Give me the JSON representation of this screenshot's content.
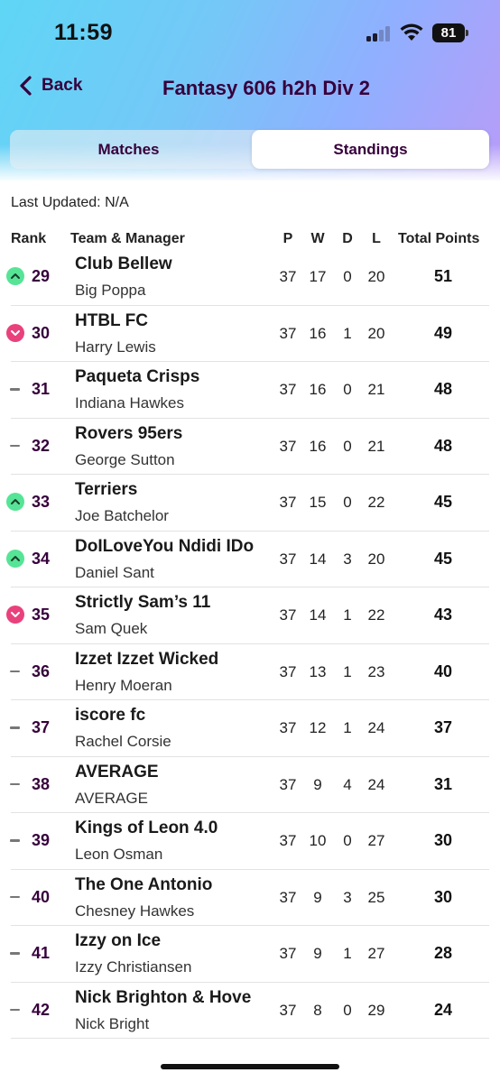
{
  "status_bar": {
    "time": "11:59",
    "battery": "81"
  },
  "nav": {
    "back_label": "Back",
    "title": "Fantasy 606 h2h Div 2"
  },
  "tabs": {
    "matches": "Matches",
    "standings": "Standings"
  },
  "last_updated": "Last Updated: N/A",
  "columns": {
    "rank": "Rank",
    "team": "Team & Manager",
    "p": "P",
    "w": "W",
    "d": "D",
    "l": "L",
    "points": "Total Points"
  },
  "rows": [
    {
      "rank": "29",
      "trend": "up",
      "team": "Club Bellew",
      "manager": "Big Poppa",
      "p": "37",
      "w": "17",
      "d": "0",
      "l": "20",
      "points": "51"
    },
    {
      "rank": "30",
      "trend": "down",
      "team": "HTBL FC",
      "manager": "Harry Lewis",
      "p": "37",
      "w": "16",
      "d": "1",
      "l": "20",
      "points": "49"
    },
    {
      "rank": "31",
      "trend": "same",
      "team": "Paqueta Crisps",
      "manager": "Indiana Hawkes",
      "p": "37",
      "w": "16",
      "d": "0",
      "l": "21",
      "points": "48"
    },
    {
      "rank": "32",
      "trend": "same",
      "team": "Rovers 95ers",
      "manager": "George Sutton",
      "p": "37",
      "w": "16",
      "d": "0",
      "l": "21",
      "points": "48"
    },
    {
      "rank": "33",
      "trend": "up",
      "team": "Terriers",
      "manager": "Joe Batchelor",
      "p": "37",
      "w": "15",
      "d": "0",
      "l": "22",
      "points": "45"
    },
    {
      "rank": "34",
      "trend": "up",
      "team": "DoILoveYou Ndidi IDo",
      "manager": "Daniel Sant",
      "p": "37",
      "w": "14",
      "d": "3",
      "l": "20",
      "points": "45"
    },
    {
      "rank": "35",
      "trend": "down",
      "team": "Strictly Sam’s 11",
      "manager": "Sam Quek",
      "p": "37",
      "w": "14",
      "d": "1",
      "l": "22",
      "points": "43"
    },
    {
      "rank": "36",
      "trend": "same",
      "team": "Izzet Izzet Wicked",
      "manager": "Henry Moeran",
      "p": "37",
      "w": "13",
      "d": "1",
      "l": "23",
      "points": "40"
    },
    {
      "rank": "37",
      "trend": "same",
      "team": "iscore fc",
      "manager": "Rachel Corsie",
      "p": "37",
      "w": "12",
      "d": "1",
      "l": "24",
      "points": "37"
    },
    {
      "rank": "38",
      "trend": "same",
      "team": "AVERAGE",
      "manager": "AVERAGE",
      "p": "37",
      "w": "9",
      "d": "4",
      "l": "24",
      "points": "31"
    },
    {
      "rank": "39",
      "trend": "same",
      "team": "Kings of Leon 4.0",
      "manager": "Leon Osman",
      "p": "37",
      "w": "10",
      "d": "0",
      "l": "27",
      "points": "30"
    },
    {
      "rank": "40",
      "trend": "same",
      "team": "The One Antonio",
      "manager": "Chesney Hawkes",
      "p": "37",
      "w": "9",
      "d": "3",
      "l": "25",
      "points": "30"
    },
    {
      "rank": "41",
      "trend": "same",
      "team": "Izzy on Ice",
      "manager": "Izzy Christiansen",
      "p": "37",
      "w": "9",
      "d": "1",
      "l": "27",
      "points": "28"
    },
    {
      "rank": "42",
      "trend": "same",
      "team": "Nick Brighton & Hove",
      "manager": "Nick Bright",
      "p": "37",
      "w": "8",
      "d": "0",
      "l": "29",
      "points": "24"
    }
  ]
}
